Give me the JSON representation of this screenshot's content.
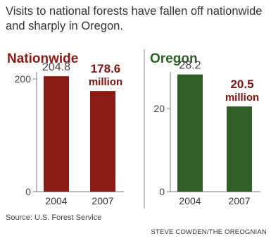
{
  "headline": "Visits to national forests have fallen off nationwide and sharply in Oregon.",
  "source": "Source: U.S. Forest Service",
  "credit": "STEVE COWDEN/THE OREOGNIAN",
  "colors": {
    "nationwide": "#8b1a12",
    "oregon": "#2f5e26",
    "highlight": "#7a1410"
  },
  "chart_data": [
    {
      "type": "bar",
      "title": "Nationwide",
      "categories": [
        "2004",
        "2007"
      ],
      "values": [
        204.8,
        178.6
      ],
      "value_labels": [
        "204.8",
        "178.6"
      ],
      "unit_label": "million",
      "ylim": [
        0,
        250
      ],
      "yticks": [
        "0",
        "200"
      ],
      "ytick_values": [
        0,
        200
      ]
    },
    {
      "type": "bar",
      "title": "Oregon",
      "categories": [
        "2004",
        "2007"
      ],
      "values": [
        28.2,
        20.5
      ],
      "value_labels": [
        "28.2",
        "20.5"
      ],
      "unit_label": "million",
      "ylim": [
        0,
        33.9
      ],
      "yticks": [
        "0",
        "20"
      ],
      "ytick_values": [
        0,
        20
      ]
    }
  ]
}
